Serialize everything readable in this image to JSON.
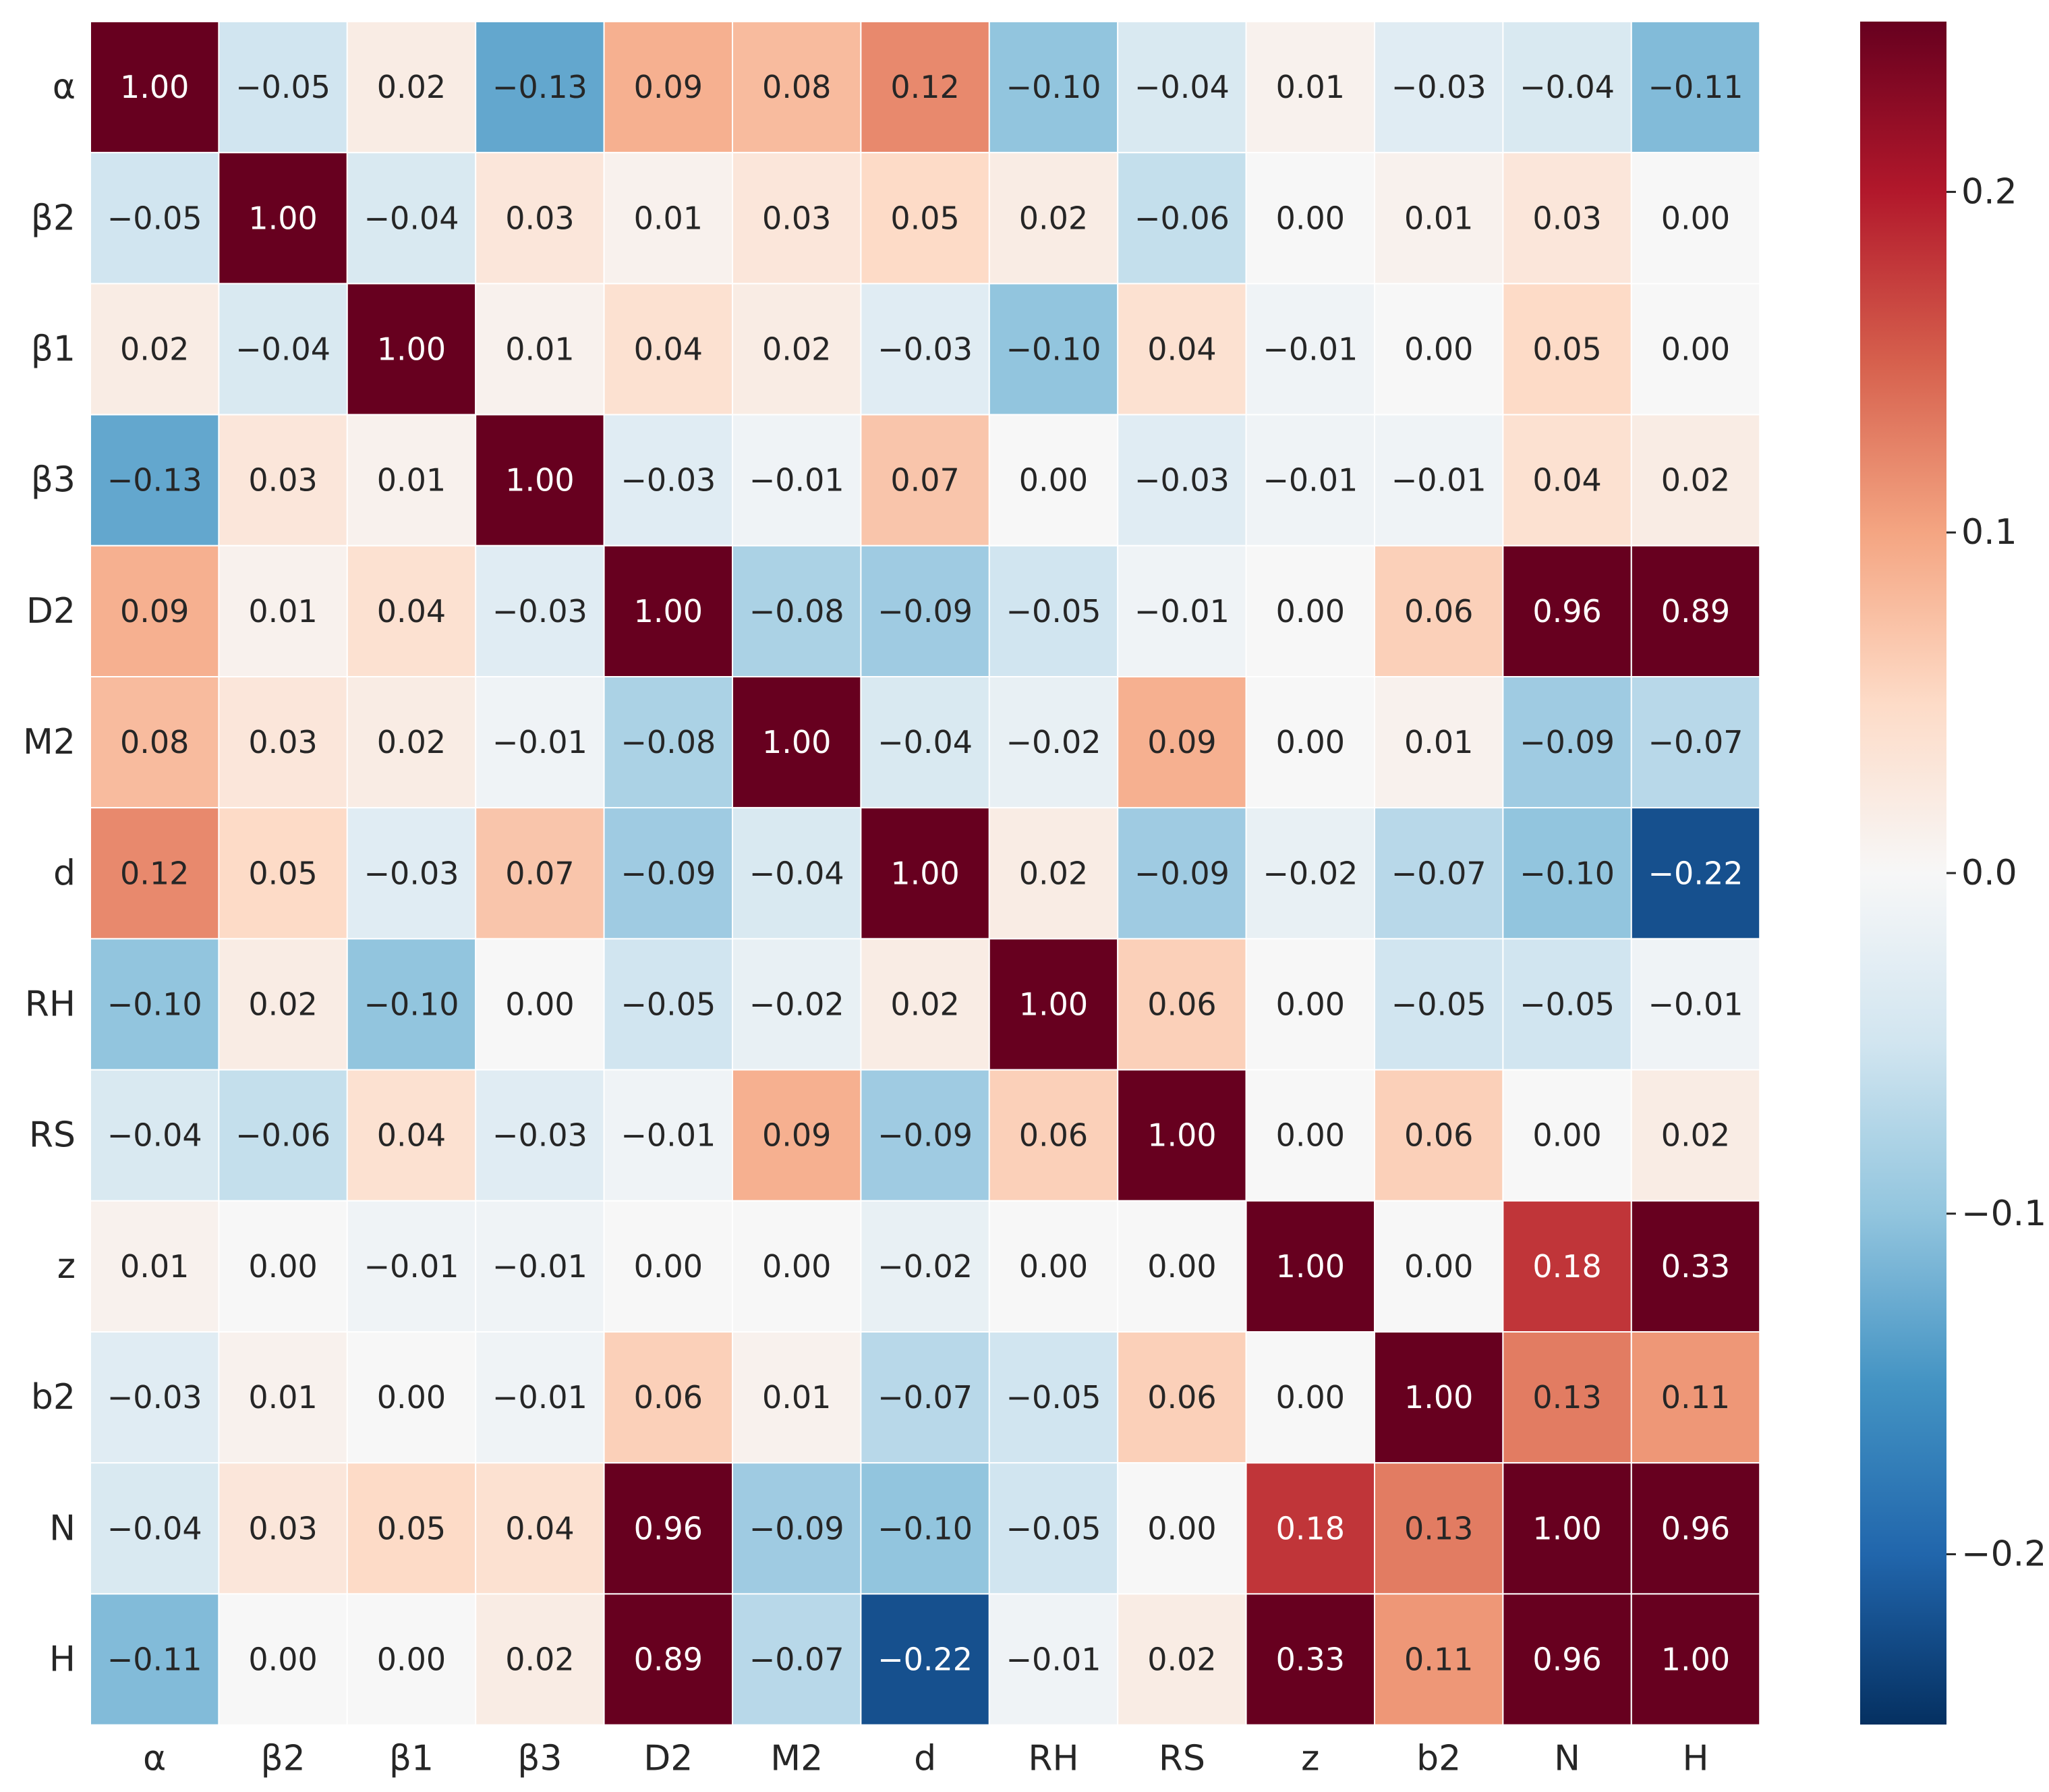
{
  "chart_data": {
    "type": "heatmap",
    "title": "",
    "xlabel": "",
    "ylabel": "",
    "x_labels": [
      "α",
      "β2",
      "β1",
      "β3",
      "D2",
      "M2",
      "d",
      "RH",
      "RS",
      "z",
      "b2",
      "N",
      "H"
    ],
    "y_labels": [
      "α",
      "β2",
      "β1",
      "β3",
      "D2",
      "M2",
      "d",
      "RH",
      "RS",
      "z",
      "b2",
      "N",
      "H"
    ],
    "values": [
      [
        1.0,
        -0.05,
        0.02,
        -0.13,
        0.09,
        0.08,
        0.12,
        -0.1,
        -0.04,
        0.01,
        -0.03,
        -0.04,
        -0.11
      ],
      [
        -0.05,
        1.0,
        -0.04,
        0.03,
        0.01,
        0.03,
        0.05,
        0.02,
        -0.06,
        0.0,
        0.01,
        0.03,
        0.0
      ],
      [
        0.02,
        -0.04,
        1.0,
        0.01,
        0.04,
        0.02,
        -0.03,
        -0.1,
        0.04,
        -0.01,
        0.0,
        0.05,
        0.0
      ],
      [
        -0.13,
        0.03,
        0.01,
        1.0,
        -0.03,
        -0.01,
        0.07,
        0.0,
        -0.03,
        -0.01,
        -0.01,
        0.04,
        0.02
      ],
      [
        0.09,
        0.01,
        0.04,
        -0.03,
        1.0,
        -0.08,
        -0.09,
        -0.05,
        -0.01,
        0.0,
        0.06,
        0.96,
        0.89
      ],
      [
        0.08,
        0.03,
        0.02,
        -0.01,
        -0.08,
        1.0,
        -0.04,
        -0.02,
        0.09,
        0.0,
        0.01,
        -0.09,
        -0.07
      ],
      [
        0.12,
        0.05,
        -0.03,
        0.07,
        -0.09,
        -0.04,
        1.0,
        0.02,
        -0.09,
        -0.02,
        -0.07,
        -0.1,
        -0.22
      ],
      [
        -0.1,
        0.02,
        -0.1,
        0.0,
        -0.05,
        -0.02,
        0.02,
        1.0,
        0.06,
        0.0,
        -0.05,
        -0.05,
        -0.01
      ],
      [
        -0.04,
        -0.06,
        0.04,
        -0.03,
        -0.01,
        0.09,
        -0.09,
        0.06,
        1.0,
        0.0,
        0.06,
        0.0,
        0.02
      ],
      [
        0.01,
        0.0,
        -0.01,
        -0.01,
        0.0,
        0.0,
        -0.02,
        0.0,
        0.0,
        1.0,
        0.0,
        0.18,
        0.33
      ],
      [
        -0.03,
        0.01,
        0.0,
        -0.01,
        0.06,
        0.01,
        -0.07,
        -0.05,
        0.06,
        0.0,
        1.0,
        0.13,
        0.11
      ],
      [
        -0.04,
        0.03,
        0.05,
        0.04,
        0.96,
        -0.09,
        -0.1,
        -0.05,
        0.0,
        0.18,
        0.13,
        1.0,
        0.96
      ],
      [
        -0.11,
        0.0,
        0.0,
        0.02,
        0.89,
        -0.07,
        -0.22,
        -0.01,
        0.02,
        0.33,
        0.11,
        0.96,
        1.0
      ]
    ],
    "value_format": "2-decimal, minus sign shown as −",
    "colormap": "RdBu_r",
    "vmin": -0.25,
    "vmax": 0.25,
    "colorbar": {
      "ticks": [
        0.2,
        0.1,
        0.0,
        -0.1,
        -0.2
      ],
      "tick_labels": [
        "0.2",
        "0.1",
        "0.0",
        "−0.1",
        "−0.2"
      ],
      "placement": "right"
    },
    "grid": false,
    "cell_separators": "white"
  }
}
